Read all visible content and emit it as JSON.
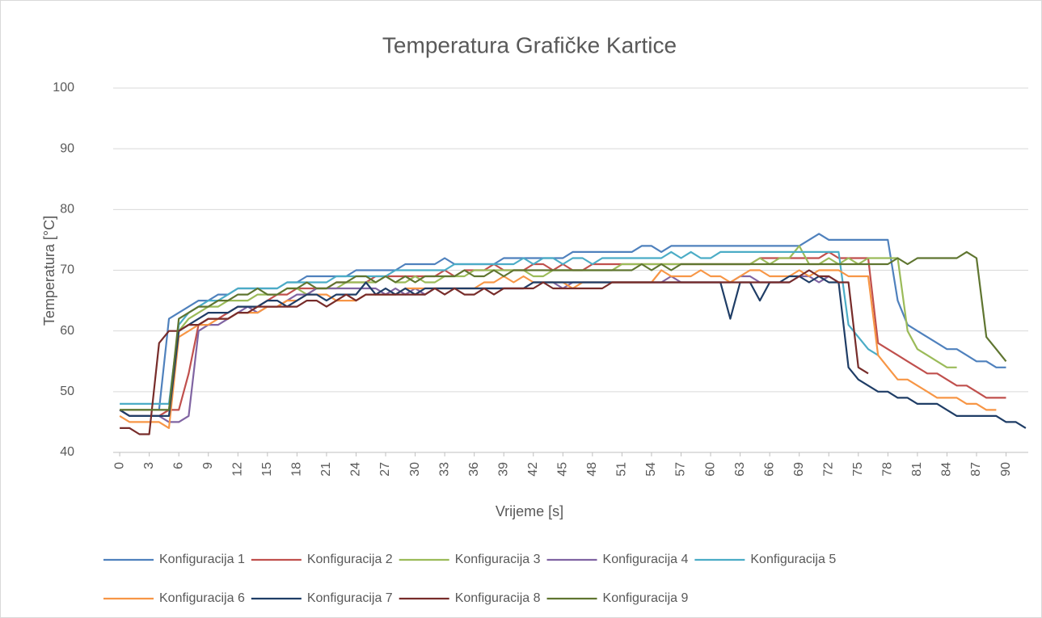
{
  "chart_data": {
    "type": "line",
    "title": "Temperatura Grafičke Kartice",
    "x_label": "Vrijeme [s]",
    "y_label": "Temperatura [°C]",
    "x": [
      0,
      1,
      2,
      3,
      4,
      5,
      6,
      7,
      8,
      9,
      10,
      11,
      12,
      13,
      14,
      15,
      16,
      17,
      18,
      19,
      20,
      21,
      22,
      23,
      24,
      25,
      26,
      27,
      28,
      29,
      30,
      31,
      32,
      33,
      34,
      35,
      36,
      37,
      38,
      39,
      40,
      41,
      42,
      43,
      44,
      45,
      46,
      47,
      48,
      49,
      50,
      51,
      52,
      53,
      54,
      55,
      56,
      57,
      58,
      59,
      60,
      61,
      62,
      63,
      64,
      65,
      66,
      67,
      68,
      69,
      70,
      71,
      72,
      73,
      74,
      75,
      76,
      77,
      78,
      79,
      80,
      81,
      82,
      83,
      84,
      85,
      86,
      87,
      88,
      89,
      90,
      91,
      92
    ],
    "xlim": [
      -0.5,
      92.5
    ],
    "xticks": [
      0,
      3,
      6,
      9,
      12,
      15,
      18,
      21,
      24,
      27,
      30,
      33,
      36,
      39,
      42,
      45,
      48,
      51,
      54,
      57,
      60,
      63,
      66,
      69,
      72,
      75,
      78,
      81,
      84,
      87,
      90
    ],
    "ylim": [
      40,
      100
    ],
    "yticks": [
      40,
      50,
      60,
      70,
      80,
      90,
      100
    ],
    "grid": true,
    "legend": "bottom",
    "series": [
      {
        "name": "Konfiguracija 1",
        "color": "#4f81bd",
        "values": [
          47,
          47,
          47,
          47,
          47,
          62,
          63,
          64,
          65,
          65,
          66,
          66,
          67,
          67,
          67,
          67,
          67,
          68,
          68,
          69,
          69,
          69,
          69,
          69,
          70,
          70,
          70,
          70,
          70,
          71,
          71,
          71,
          71,
          72,
          71,
          71,
          71,
          71,
          71,
          72,
          72,
          72,
          72,
          72,
          72,
          72,
          73,
          73,
          73,
          73,
          73,
          73,
          73,
          74,
          74,
          73,
          74,
          74,
          74,
          74,
          74,
          74,
          74,
          74,
          74,
          74,
          74,
          74,
          74,
          74,
          75,
          76,
          75,
          75,
          75,
          75,
          75,
          75,
          75,
          65,
          61,
          60,
          59,
          58,
          57,
          57,
          56,
          55,
          55,
          54,
          54,
          null,
          null
        ]
      },
      {
        "name": "Konfiguracija 2",
        "color": "#c0504d",
        "values": [
          47,
          46,
          46,
          46,
          46,
          47,
          47,
          53,
          61,
          62,
          62,
          63,
          64,
          64,
          64,
          65,
          66,
          66,
          67,
          67,
          67,
          67,
          68,
          68,
          68,
          68,
          69,
          69,
          69,
          69,
          69,
          69,
          69,
          70,
          69,
          70,
          70,
          70,
          71,
          70,
          70,
          70,
          71,
          71,
          70,
          71,
          70,
          70,
          71,
          71,
          71,
          71,
          71,
          71,
          71,
          71,
          71,
          71,
          71,
          71,
          71,
          71,
          71,
          71,
          71,
          72,
          72,
          72,
          72,
          72,
          72,
          72,
          73,
          72,
          72,
          72,
          72,
          58,
          57,
          56,
          55,
          54,
          53,
          53,
          52,
          51,
          51,
          50,
          49,
          49,
          49,
          null,
          null
        ]
      },
      {
        "name": "Konfiguracija 3",
        "color": "#9bbb59",
        "values": [
          47,
          47,
          47,
          47,
          47,
          47,
          60,
          62,
          63,
          64,
          64,
          65,
          65,
          65,
          66,
          66,
          66,
          67,
          67,
          66,
          67,
          67,
          67,
          68,
          68,
          68,
          68,
          69,
          68,
          68,
          69,
          68,
          68,
          69,
          69,
          69,
          70,
          70,
          70,
          70,
          70,
          70,
          69,
          69,
          70,
          70,
          70,
          70,
          70,
          70,
          70,
          71,
          71,
          71,
          71,
          71,
          71,
          71,
          71,
          71,
          71,
          71,
          71,
          71,
          71,
          72,
          71,
          72,
          72,
          74,
          71,
          71,
          72,
          71,
          72,
          71,
          72,
          72,
          72,
          72,
          60,
          57,
          56,
          55,
          54,
          54,
          null,
          null,
          null,
          null,
          null,
          null,
          null
        ]
      },
      {
        "name": "Konfiguracija 4",
        "color": "#8064a2",
        "values": [
          47,
          46,
          46,
          46,
          46,
          45,
          45,
          46,
          60,
          61,
          61,
          62,
          63,
          64,
          63,
          64,
          64,
          65,
          66,
          66,
          67,
          67,
          67,
          67,
          67,
          67,
          67,
          66,
          67,
          66,
          67,
          66,
          67,
          67,
          67,
          67,
          67,
          67,
          67,
          67,
          67,
          67,
          68,
          68,
          68,
          67,
          68,
          68,
          68,
          68,
          68,
          68,
          68,
          68,
          68,
          68,
          69,
          68,
          68,
          68,
          68,
          68,
          68,
          69,
          69,
          68,
          68,
          68,
          68,
          69,
          69,
          68,
          69,
          68,
          null,
          null,
          null,
          null,
          null,
          null,
          null,
          null,
          null,
          null,
          null,
          null,
          null,
          null,
          null,
          null,
          null,
          null,
          null
        ]
      },
      {
        "name": "Konfiguracija 5",
        "color": "#4bacc6",
        "values": [
          48,
          48,
          48,
          48,
          48,
          48,
          61,
          63,
          64,
          65,
          65,
          66,
          67,
          67,
          67,
          67,
          67,
          68,
          68,
          68,
          68,
          68,
          69,
          69,
          69,
          69,
          69,
          69,
          70,
          70,
          70,
          70,
          70,
          70,
          71,
          71,
          71,
          71,
          71,
          71,
          71,
          72,
          71,
          72,
          72,
          71,
          72,
          72,
          71,
          72,
          72,
          72,
          72,
          72,
          72,
          72,
          73,
          72,
          73,
          72,
          72,
          73,
          73,
          73,
          73,
          73,
          73,
          73,
          73,
          73,
          73,
          73,
          73,
          73,
          61,
          59,
          57,
          56,
          null,
          null,
          null,
          null,
          null,
          null,
          null,
          null,
          null,
          null,
          null,
          null,
          null,
          null,
          null
        ]
      },
      {
        "name": "Konfiguracija 6",
        "color": "#f79646",
        "values": [
          46,
          45,
          45,
          45,
          45,
          44,
          59,
          60,
          61,
          61,
          62,
          62,
          63,
          63,
          63,
          64,
          64,
          65,
          65,
          66,
          66,
          66,
          65,
          65,
          65,
          66,
          66,
          66,
          66,
          67,
          67,
          67,
          67,
          67,
          67,
          67,
          67,
          68,
          68,
          69,
          68,
          69,
          68,
          68,
          68,
          68,
          67,
          68,
          68,
          68,
          68,
          68,
          68,
          68,
          68,
          70,
          69,
          69,
          69,
          70,
          69,
          69,
          68,
          69,
          70,
          70,
          69,
          69,
          69,
          70,
          69,
          70,
          70,
          70,
          69,
          69,
          69,
          56,
          54,
          52,
          52,
          51,
          50,
          49,
          49,
          49,
          48,
          48,
          47,
          47,
          null,
          null,
          null
        ]
      },
      {
        "name": "Konfiguracija 7",
        "color": "#1f3d66",
        "values": [
          47,
          46,
          46,
          46,
          46,
          46,
          60,
          61,
          62,
          63,
          63,
          63,
          64,
          64,
          64,
          65,
          65,
          64,
          65,
          66,
          66,
          65,
          66,
          66,
          66,
          68,
          66,
          67,
          66,
          67,
          66,
          67,
          67,
          67,
          67,
          67,
          67,
          67,
          67,
          67,
          67,
          67,
          68,
          68,
          68,
          68,
          68,
          68,
          68,
          68,
          68,
          68,
          68,
          68,
          68,
          68,
          68,
          68,
          68,
          68,
          68,
          68,
          62,
          68,
          68,
          65,
          68,
          68,
          69,
          69,
          68,
          69,
          68,
          68,
          54,
          52,
          51,
          50,
          50,
          49,
          49,
          48,
          48,
          48,
          47,
          46,
          46,
          46,
          46,
          46,
          45,
          45,
          44
        ]
      },
      {
        "name": "Konfiguracija 8",
        "color": "#772c2a",
        "values": [
          44,
          44,
          43,
          43,
          58,
          60,
          60,
          61,
          61,
          62,
          62,
          62,
          63,
          63,
          64,
          64,
          64,
          64,
          64,
          65,
          65,
          64,
          65,
          66,
          65,
          66,
          66,
          66,
          66,
          66,
          66,
          66,
          67,
          66,
          67,
          66,
          66,
          67,
          66,
          67,
          67,
          67,
          67,
          68,
          67,
          67,
          67,
          67,
          67,
          67,
          68,
          68,
          68,
          68,
          68,
          68,
          68,
          68,
          68,
          68,
          68,
          68,
          68,
          68,
          68,
          68,
          68,
          68,
          68,
          69,
          70,
          69,
          69,
          68,
          68,
          54,
          53,
          null,
          null,
          null,
          null,
          null,
          null,
          null,
          null,
          null,
          null,
          null,
          null,
          null,
          null,
          null,
          null
        ]
      },
      {
        "name": "Konfiguracija 9",
        "color": "#5f7530",
        "values": [
          47,
          47,
          47,
          47,
          47,
          47,
          62,
          63,
          64,
          64,
          65,
          65,
          66,
          66,
          67,
          66,
          66,
          67,
          67,
          68,
          67,
          67,
          68,
          68,
          69,
          69,
          68,
          69,
          68,
          69,
          68,
          69,
          69,
          69,
          69,
          70,
          69,
          69,
          70,
          69,
          70,
          70,
          70,
          70,
          70,
          70,
          70,
          70,
          70,
          70,
          70,
          70,
          70,
          71,
          70,
          71,
          70,
          71,
          71,
          71,
          71,
          71,
          71,
          71,
          71,
          71,
          71,
          71,
          71,
          71,
          71,
          71,
          71,
          71,
          71,
          71,
          71,
          71,
          71,
          72,
          71,
          72,
          72,
          72,
          72,
          72,
          73,
          72,
          59,
          57,
          55,
          null,
          null
        ]
      }
    ]
  }
}
